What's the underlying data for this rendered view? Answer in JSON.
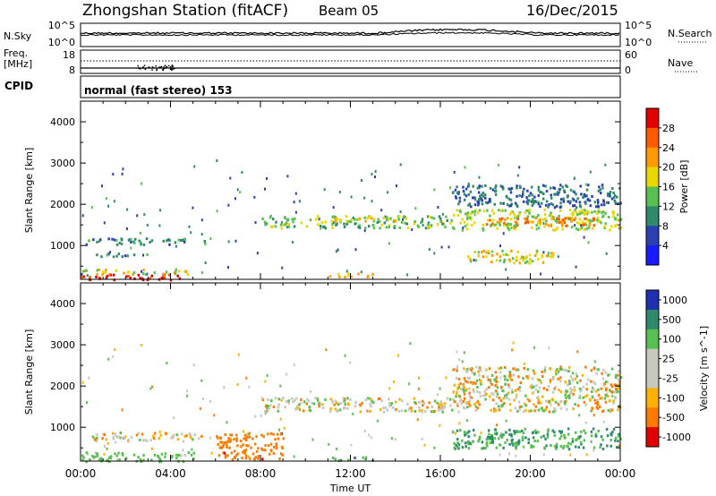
{
  "header": {
    "station": "Zhongshan Station (fitACF)",
    "beam": "Beam 05",
    "date": "16/Dec/2015"
  },
  "panels": {
    "nsky_label": "N.Sky",
    "nsky_ticks": [
      "10^5",
      "10^0"
    ],
    "nsearch_label": "N.Search",
    "freq_label_1": "Freq.",
    "freq_label_2": "[MHz]",
    "freq_ticks": [
      "18",
      "8"
    ],
    "nave_ticks": [
      "60",
      "0"
    ],
    "nave_label": "Nave",
    "cpid_label": "CPID",
    "mode": "normal (fast stereo) 153"
  },
  "axes": {
    "y_label": "Slant Range [km]",
    "y_ticks": [
      "4000",
      "3000",
      "2000",
      "1000"
    ],
    "x_label": "Time UT",
    "x_ticks": [
      "00:00",
      "04:00",
      "08:00",
      "12:00",
      "16:00",
      "20:00",
      "00:00"
    ]
  },
  "power_scale": {
    "title": "Power [dB]",
    "labels": [
      "28",
      "24",
      "20",
      "16",
      "12",
      "8",
      "4"
    ],
    "colors": [
      "#e00000",
      "#ff5a00",
      "#ff9a00",
      "#e8d800",
      "#58c050",
      "#2e8a6a",
      "#2a3fb0",
      "#1a1aff"
    ]
  },
  "velocity_scale": {
    "title": "Velocity [m s^-1]",
    "labels": [
      "1000",
      "500",
      "100",
      "25",
      "-25",
      "-100",
      "-500",
      "-1000"
    ],
    "colors": [
      "#2030b0",
      "#2e8a6a",
      "#58c050",
      "#c8c8c0",
      "#c8c8c0",
      "#ffb000",
      "#ff7a00",
      "#e00000"
    ]
  },
  "chart_data": [
    {
      "type": "heatmap",
      "title": "Power [dB]",
      "xlabel": "Time UT",
      "ylabel": "Slant Range [km]",
      "xlim": [
        0,
        24
      ],
      "ylim": [
        180,
        4500
      ],
      "bands": [
        {
          "t": [
            0,
            4.5
          ],
          "range": [
            190,
            330
          ],
          "level": 28
        },
        {
          "t": [
            0,
            5
          ],
          "range": [
            330,
            450
          ],
          "level": 16
        },
        {
          "t": [
            0.4,
            3
          ],
          "range": [
            750,
            830
          ],
          "level": 8
        },
        {
          "t": [
            0.2,
            5.5
          ],
          "range": [
            1050,
            1200
          ],
          "level": 8
        },
        {
          "t": [
            8,
            16.5
          ],
          "range": [
            1450,
            1750
          ],
          "level": 12
        },
        {
          "t": [
            11,
            14
          ],
          "range": [
            1600,
            1700
          ],
          "level": 18
        },
        {
          "t": [
            16.5,
            24
          ],
          "range": [
            1400,
            1900
          ],
          "level": 14
        },
        {
          "t": [
            18,
            23
          ],
          "range": [
            1500,
            1700
          ],
          "level": 22
        },
        {
          "t": [
            16.5,
            24
          ],
          "range": [
            1950,
            2500
          ],
          "level": 6
        },
        {
          "t": [
            17,
            21
          ],
          "range": [
            600,
            900
          ],
          "level": 16
        },
        {
          "t": [
            11,
            13
          ],
          "range": [
            250,
            350
          ],
          "level": 18
        }
      ]
    },
    {
      "type": "heatmap",
      "title": "Velocity [m s^-1]",
      "xlabel": "Time UT",
      "ylabel": "Slant Range [km]",
      "xlim": [
        0,
        24
      ],
      "ylim": [
        180,
        4500
      ],
      "bands": [
        {
          "t": [
            0,
            5
          ],
          "range": [
            190,
            420
          ],
          "velocity": 150
        },
        {
          "t": [
            0.5,
            5.5
          ],
          "range": [
            700,
            900
          ],
          "velocity": 0
        },
        {
          "t": [
            8,
            16.5
          ],
          "range": [
            1400,
            1750
          ],
          "velocity": 0
        },
        {
          "t": [
            16.5,
            24
          ],
          "range": [
            1400,
            2500
          ],
          "velocity": 0
        },
        {
          "t": [
            16.5,
            24
          ],
          "range": [
            500,
            1000
          ],
          "velocity": 300
        },
        {
          "t": [
            6,
            9
          ],
          "range": [
            250,
            900
          ],
          "velocity": -200
        },
        {
          "t": [
            11,
            13
          ],
          "range": [
            200,
            300
          ],
          "velocity": 300
        }
      ]
    }
  ]
}
